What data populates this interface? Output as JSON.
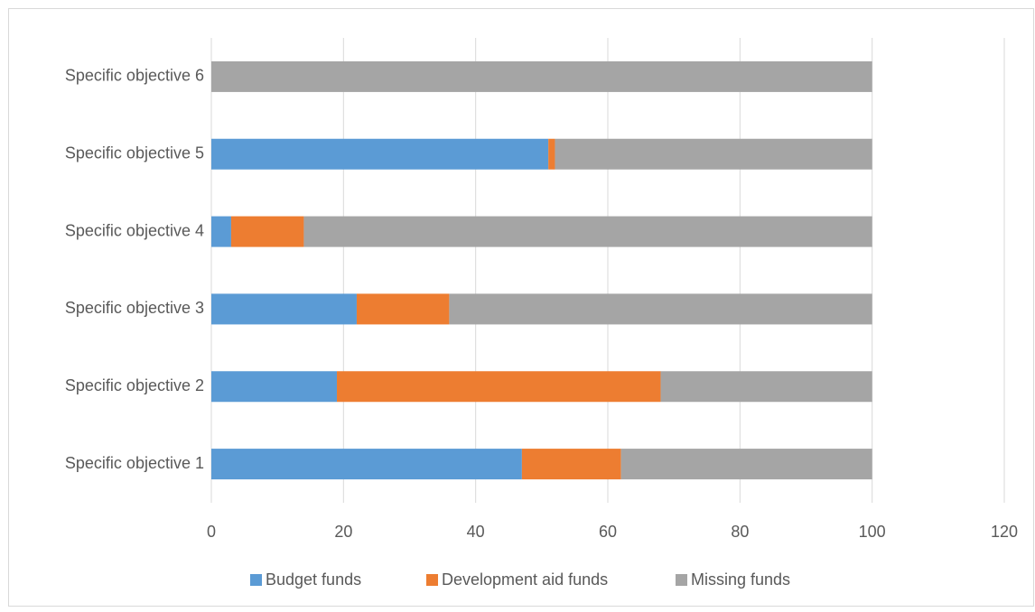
{
  "chart_data": {
    "type": "stacked_barh",
    "categories": [
      "Specific objective 1",
      "Specific objective 2",
      "Specific objective 3",
      "Specific objective 4",
      "Specific objective 5",
      "Specific objective 6"
    ],
    "series": [
      {
        "name": "Budget funds",
        "color": "#5b9bd5",
        "values": [
          47,
          19,
          22,
          3,
          51,
          0
        ]
      },
      {
        "name": "Development aid funds",
        "color": "#ed7d31",
        "values": [
          15,
          49,
          14,
          11,
          1,
          0
        ]
      },
      {
        "name": "Missing funds",
        "color": "#a5a5a5",
        "values": [
          38,
          32,
          64,
          86,
          48,
          100
        ]
      }
    ],
    "xlim": [
      0,
      120
    ],
    "xticks": [
      0,
      20,
      40,
      60,
      80,
      100,
      120
    ],
    "grid": true,
    "legend": "bottom"
  }
}
